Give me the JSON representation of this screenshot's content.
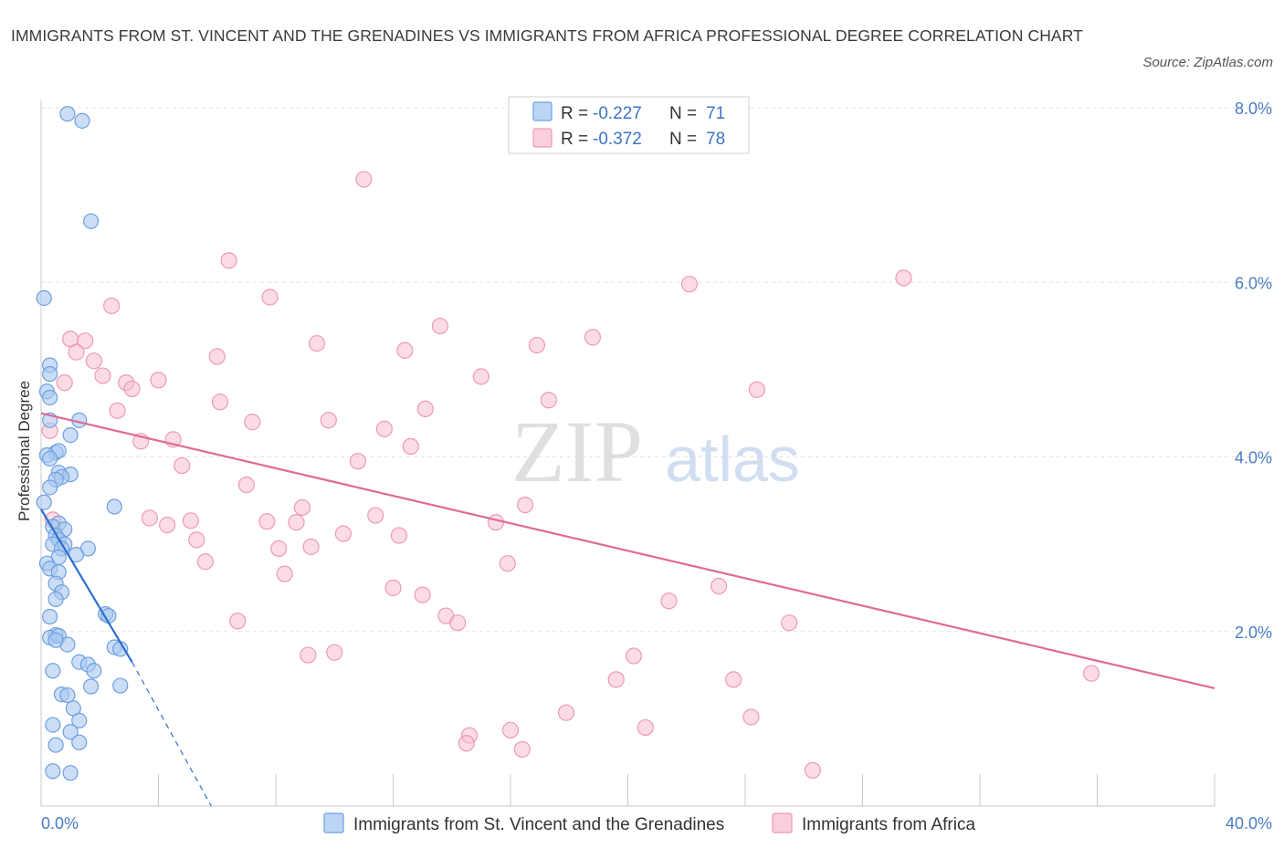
{
  "title": "IMMIGRANTS FROM ST. VINCENT AND THE GRENADINES VS IMMIGRANTS FROM AFRICA PROFESSIONAL DEGREE CORRELATION CHART",
  "source": "Source: ZipAtlas.com",
  "watermark": {
    "zip": "ZIP",
    "atlas": "atlas"
  },
  "colors": {
    "series_a_fill": "#a9c8f0",
    "series_a_stroke": "#6e9fe0",
    "series_a_line": "#2e6fcf",
    "series_b_fill": "#f7bfd0",
    "series_b_stroke": "#ee9ab4",
    "series_b_line": "#e06a94",
    "tick_label": "#4a7cc4",
    "grid": "#e3e3e3"
  },
  "legend": {
    "rows": [
      {
        "r_label": "R = ",
        "r_value": "-0.227",
        "n_label": "N = ",
        "n_value": "71"
      },
      {
        "r_label": "R = ",
        "r_value": "-0.372",
        "n_label": "N = ",
        "n_value": "78"
      }
    ]
  },
  "chart_data": {
    "type": "scatter",
    "title": "IMMIGRANTS FROM ST. VINCENT AND THE GRENADINES VS IMMIGRANTS FROM AFRICA PROFESSIONAL DEGREE CORRELATION CHART",
    "xlabel": "",
    "ylabel": "Professional Degree",
    "xlim": [
      0,
      40
    ],
    "ylim": [
      0,
      8
    ],
    "x_tick_labels": [
      "0.0%",
      "40.0%"
    ],
    "y_ticks": [
      2,
      4,
      6,
      8
    ],
    "y_tick_labels": [
      "2.0%",
      "4.0%",
      "6.0%",
      "8.0%"
    ],
    "grid": true,
    "legend_position": "top-center",
    "series": [
      {
        "name": "Immigrants from St. Vincent and the Grenadines",
        "R": -0.227,
        "N": 71,
        "trend": {
          "x": [
            0.0,
            3.1
          ],
          "y": [
            3.4,
            1.65
          ],
          "dashed_extension": {
            "x": [
              3.1,
              5.8
            ],
            "y": [
              1.65,
              0.0
            ]
          }
        },
        "points": [
          [
            0.9,
            7.93
          ],
          [
            1.4,
            7.85
          ],
          [
            1.7,
            6.7
          ],
          [
            0.1,
            5.82
          ],
          [
            0.3,
            5.05
          ],
          [
            0.3,
            4.95
          ],
          [
            0.2,
            4.75
          ],
          [
            0.3,
            4.68
          ],
          [
            1.3,
            4.42
          ],
          [
            0.3,
            4.42
          ],
          [
            1.0,
            4.25
          ],
          [
            0.5,
            4.05
          ],
          [
            0.6,
            4.07
          ],
          [
            0.2,
            4.02
          ],
          [
            0.3,
            3.98
          ],
          [
            0.6,
            3.82
          ],
          [
            1.0,
            3.8
          ],
          [
            0.7,
            3.77
          ],
          [
            0.5,
            3.74
          ],
          [
            0.3,
            3.65
          ],
          [
            0.1,
            3.48
          ],
          [
            2.5,
            3.43
          ],
          [
            0.6,
            3.24
          ],
          [
            0.4,
            3.2
          ],
          [
            0.8,
            3.17
          ],
          [
            0.5,
            3.1
          ],
          [
            0.6,
            3.05
          ],
          [
            0.4,
            3.0
          ],
          [
            0.8,
            3.0
          ],
          [
            0.7,
            2.95
          ],
          [
            1.6,
            2.95
          ],
          [
            1.2,
            2.88
          ],
          [
            0.6,
            2.85
          ],
          [
            0.2,
            2.78
          ],
          [
            0.3,
            2.72
          ],
          [
            0.6,
            2.68
          ],
          [
            0.5,
            2.55
          ],
          [
            0.7,
            2.45
          ],
          [
            0.5,
            2.37
          ],
          [
            2.2,
            2.2
          ],
          [
            2.3,
            2.18
          ],
          [
            0.3,
            2.17
          ],
          [
            0.5,
            1.96
          ],
          [
            0.3,
            1.93
          ],
          [
            0.6,
            1.95
          ],
          [
            0.9,
            1.85
          ],
          [
            0.5,
            1.9
          ],
          [
            2.5,
            1.82
          ],
          [
            2.7,
            1.8
          ],
          [
            1.3,
            1.65
          ],
          [
            1.6,
            1.62
          ],
          [
            1.8,
            1.55
          ],
          [
            0.4,
            1.55
          ],
          [
            2.7,
            1.38
          ],
          [
            1.7,
            1.37
          ],
          [
            0.7,
            1.28
          ],
          [
            0.9,
            1.27
          ],
          [
            1.1,
            1.12
          ],
          [
            1.3,
            0.98
          ],
          [
            0.4,
            0.93
          ],
          [
            1.0,
            0.85
          ],
          [
            1.3,
            0.73
          ],
          [
            0.5,
            0.7
          ],
          [
            0.4,
            0.4
          ],
          [
            1.0,
            0.38
          ]
        ]
      },
      {
        "name": "Immigrants from Africa",
        "R": -0.372,
        "N": 78,
        "trend": {
          "x": [
            0.0,
            40.0
          ],
          "y": [
            4.5,
            1.35
          ]
        },
        "points": [
          [
            11.0,
            7.18
          ],
          [
            6.4,
            6.25
          ],
          [
            22.1,
            5.98
          ],
          [
            29.4,
            6.05
          ],
          [
            7.8,
            5.83
          ],
          [
            2.4,
            5.73
          ],
          [
            13.6,
            5.5
          ],
          [
            18.8,
            5.37
          ],
          [
            1.0,
            5.35
          ],
          [
            1.5,
            5.33
          ],
          [
            9.4,
            5.3
          ],
          [
            16.9,
            5.28
          ],
          [
            1.2,
            5.2
          ],
          [
            12.4,
            5.22
          ],
          [
            6.0,
            5.15
          ],
          [
            1.8,
            5.1
          ],
          [
            2.1,
            4.93
          ],
          [
            15.0,
            4.92
          ],
          [
            4.0,
            4.88
          ],
          [
            2.9,
            4.85
          ],
          [
            3.1,
            4.78
          ],
          [
            24.4,
            4.77
          ],
          [
            0.8,
            4.85
          ],
          [
            17.3,
            4.65
          ],
          [
            6.1,
            4.63
          ],
          [
            13.1,
            4.55
          ],
          [
            2.6,
            4.53
          ],
          [
            9.8,
            4.42
          ],
          [
            7.2,
            4.4
          ],
          [
            11.7,
            4.32
          ],
          [
            0.3,
            4.3
          ],
          [
            4.5,
            4.2
          ],
          [
            3.4,
            4.18
          ],
          [
            12.6,
            4.12
          ],
          [
            10.8,
            3.95
          ],
          [
            4.8,
            3.9
          ],
          [
            7.0,
            3.68
          ],
          [
            16.5,
            3.45
          ],
          [
            8.9,
            3.42
          ],
          [
            11.4,
            3.33
          ],
          [
            3.7,
            3.3
          ],
          [
            0.4,
            3.28
          ],
          [
            5.1,
            3.27
          ],
          [
            7.7,
            3.26
          ],
          [
            8.7,
            3.25
          ],
          [
            15.5,
            3.25
          ],
          [
            4.3,
            3.22
          ],
          [
            10.3,
            3.12
          ],
          [
            12.2,
            3.1
          ],
          [
            5.3,
            3.05
          ],
          [
            9.2,
            2.97
          ],
          [
            8.1,
            2.95
          ],
          [
            5.6,
            2.8
          ],
          [
            15.9,
            2.78
          ],
          [
            8.3,
            2.66
          ],
          [
            23.1,
            2.52
          ],
          [
            12.0,
            2.5
          ],
          [
            13.0,
            2.42
          ],
          [
            21.4,
            2.35
          ],
          [
            13.8,
            2.18
          ],
          [
            14.2,
            2.1
          ],
          [
            6.7,
            2.12
          ],
          [
            25.5,
            2.1
          ],
          [
            10.0,
            1.76
          ],
          [
            9.1,
            1.73
          ],
          [
            20.2,
            1.72
          ],
          [
            35.8,
            1.52
          ],
          [
            19.6,
            1.45
          ],
          [
            23.6,
            1.45
          ],
          [
            17.9,
            1.07
          ],
          [
            24.2,
            1.02
          ],
          [
            20.6,
            0.9
          ],
          [
            16.0,
            0.87
          ],
          [
            14.6,
            0.81
          ],
          [
            14.5,
            0.72
          ],
          [
            16.4,
            0.65
          ],
          [
            26.3,
            0.41
          ]
        ]
      }
    ]
  }
}
